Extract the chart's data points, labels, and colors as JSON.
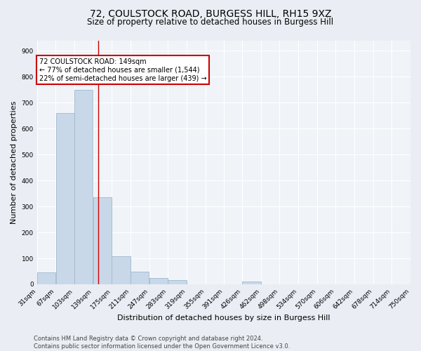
{
  "title_line1": "72, COULSTOCK ROAD, BURGESS HILL, RH15 9XZ",
  "title_line2": "Size of property relative to detached houses in Burgess Hill",
  "xlabel": "Distribution of detached houses by size in Burgess Hill",
  "ylabel": "Number of detached properties",
  "footer_line1": "Contains HM Land Registry data © Crown copyright and database right 2024.",
  "footer_line2": "Contains public sector information licensed under the Open Government Licence v3.0.",
  "bar_edges": [
    31,
    67,
    103,
    139,
    175,
    211,
    247,
    283,
    319,
    355,
    391,
    426,
    462,
    498,
    534,
    570,
    606,
    642,
    678,
    714,
    750
  ],
  "bar_heights": [
    47,
    660,
    750,
    335,
    108,
    50,
    25,
    17,
    0,
    0,
    0,
    10,
    0,
    0,
    0,
    0,
    0,
    0,
    0,
    0
  ],
  "bar_color": "#c8d8e8",
  "bar_edge_color": "#a0b8d0",
  "vline_x": 149,
  "vline_color": "#cc0000",
  "annotation_title": "72 COULSTOCK ROAD: 149sqm",
  "annotation_line1": "← 77% of detached houses are smaller (1,544)",
  "annotation_line2": "22% of semi-detached houses are larger (439) →",
  "annotation_box_color": "#cc0000",
  "annotation_fill": "white",
  "ylim": [
    0,
    940
  ],
  "yticks": [
    0,
    100,
    200,
    300,
    400,
    500,
    600,
    700,
    800,
    900
  ],
  "xlim": [
    31,
    750
  ],
  "xtick_labels": [
    "31sqm",
    "67sqm",
    "103sqm",
    "139sqm",
    "175sqm",
    "211sqm",
    "247sqm",
    "283sqm",
    "319sqm",
    "355sqm",
    "391sqm",
    "426sqm",
    "462sqm",
    "498sqm",
    "534sqm",
    "570sqm",
    "606sqm",
    "642sqm",
    "678sqm",
    "714sqm",
    "750sqm"
  ],
  "bg_color": "#eaeef4",
  "plot_bg_color": "#f0f4f8",
  "grid_color": "#ffffff",
  "title_fontsize": 10,
  "subtitle_fontsize": 8.5,
  "axis_label_fontsize": 8,
  "tick_fontsize": 6.5,
  "footer_fontsize": 6,
  "ann_fontsize": 7
}
